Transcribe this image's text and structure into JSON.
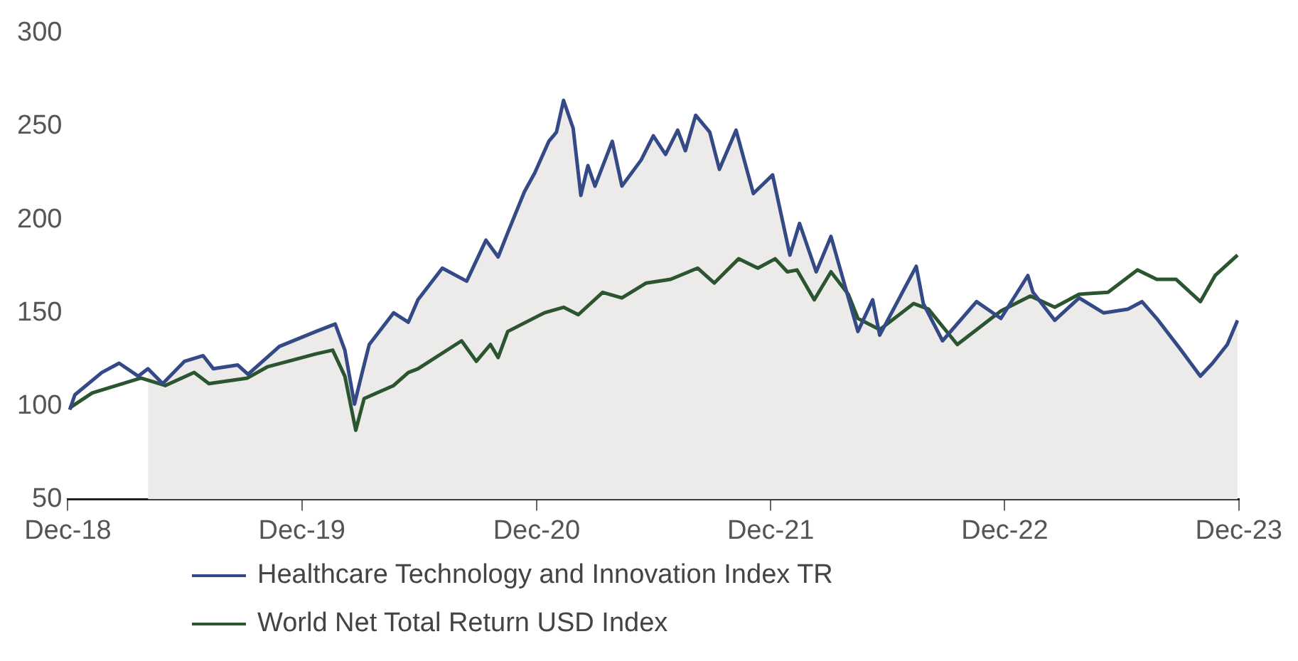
{
  "chart_data": {
    "type": "line",
    "xlim": [
      "2018-12-31",
      "2023-12-31"
    ],
    "xticks": [
      {
        "value": "2018-12-31",
        "label": "Dec-18"
      },
      {
        "value": "2019-12-31",
        "label": "Dec-19"
      },
      {
        "value": "2020-12-31",
        "label": "Dec-20"
      },
      {
        "value": "2021-12-31",
        "label": "Dec-21"
      },
      {
        "value": "2022-12-31",
        "label": "Dec-22"
      },
      {
        "value": "2023-12-31",
        "label": "Dec-23"
      }
    ],
    "ylim": [
      50,
      300
    ],
    "yticks": [
      50,
      100,
      150,
      200,
      250,
      300
    ],
    "grid": false,
    "legend": "bottom",
    "marker": "none",
    "line_style": "solid",
    "series": [
      {
        "type": "area",
        "color": "#edebea",
        "x": [
          "2019-05-05",
          "2019-05-28",
          "2019-07-01",
          "2019-07-30",
          "2019-08-15",
          "2019-09-22",
          "2019-10-08",
          "2019-11-26",
          "2020-01-22",
          "2020-02-21",
          "2020-03-07",
          "2020-03-22",
          "2020-04-03",
          "2020-04-14",
          "2020-05-22",
          "2020-06-14",
          "2020-06-29",
          "2020-08-06",
          "2020-09-13",
          "2020-10-13",
          "2020-11-01",
          "2020-11-16",
          "2020-12-12",
          "2020-12-28",
          "2021-01-19",
          "2021-01-31",
          "2021-02-11",
          "2021-02-26",
          "2021-03-10",
          "2021-03-21",
          "2021-04-01",
          "2021-04-28",
          "2021-05-13",
          "2021-06-12",
          "2021-07-01",
          "2021-07-20",
          "2021-08-08",
          "2021-08-20",
          "2021-09-05",
          "2021-09-27",
          "2021-10-12",
          "2021-11-07",
          "2021-12-04",
          "2022-01-03",
          "2022-01-30",
          "2022-02-14",
          "2022-03-12",
          "2022-04-04",
          "2022-05-16",
          "2022-06-08",
          "2022-06-19",
          "2022-08-15",
          "2022-08-26",
          "2022-09-25",
          "2022-11-17",
          "2022-12-25",
          "2023-02-05",
          "2023-02-13",
          "2023-03-19",
          "2023-04-26",
          "2023-06-03",
          "2023-07-11",
          "2023-08-02",
          "2023-08-25",
          "2023-10-02",
          "2023-11-01",
          "2023-11-20",
          "2023-12-13",
          "2023-12-29"
        ],
        "values": [
          120,
          112,
          124,
          127,
          120,
          122,
          117,
          132,
          140,
          144,
          130,
          101,
          118,
          133,
          150,
          145,
          157,
          174,
          167,
          189,
          180,
          193,
          215,
          225,
          242,
          247,
          264,
          249,
          213,
          229,
          218,
          242,
          218,
          232,
          245,
          235,
          248,
          237,
          256,
          247,
          227,
          248,
          214,
          224,
          181,
          198,
          172,
          191,
          140,
          157,
          138,
          175,
          155,
          135,
          156,
          147,
          170,
          161,
          146,
          158,
          150,
          152,
          156,
          147,
          130,
          116,
          123,
          133,
          146
        ]
      },
      {
        "type": "line",
        "name": "Healthcare Technology and Innovation Index TR",
        "color": "#344a86",
        "x": [
          "2019-01-03",
          "2019-01-11",
          "2019-02-22",
          "2019-03-21",
          "2019-04-20",
          "2019-05-05",
          "2019-05-28",
          "2019-07-01",
          "2019-07-30",
          "2019-08-15",
          "2019-09-22",
          "2019-10-08",
          "2019-11-26",
          "2020-01-22",
          "2020-02-21",
          "2020-03-07",
          "2020-03-22",
          "2020-04-03",
          "2020-04-14",
          "2020-05-22",
          "2020-06-14",
          "2020-06-29",
          "2020-08-06",
          "2020-09-13",
          "2020-10-13",
          "2020-11-01",
          "2020-11-16",
          "2020-12-12",
          "2020-12-28",
          "2021-01-19",
          "2021-01-31",
          "2021-02-11",
          "2021-02-26",
          "2021-03-10",
          "2021-03-21",
          "2021-04-01",
          "2021-04-28",
          "2021-05-13",
          "2021-06-12",
          "2021-07-01",
          "2021-07-20",
          "2021-08-08",
          "2021-08-20",
          "2021-09-05",
          "2021-09-27",
          "2021-10-12",
          "2021-11-07",
          "2021-12-04",
          "2022-01-03",
          "2022-01-30",
          "2022-02-14",
          "2022-03-12",
          "2022-04-04",
          "2022-05-16",
          "2022-06-08",
          "2022-06-19",
          "2022-08-15",
          "2022-08-26",
          "2022-09-25",
          "2022-11-17",
          "2022-12-25",
          "2023-02-05",
          "2023-02-13",
          "2023-03-19",
          "2023-04-26",
          "2023-06-03",
          "2023-07-11",
          "2023-08-02",
          "2023-08-25",
          "2023-10-02",
          "2023-11-01",
          "2023-11-20",
          "2023-12-13",
          "2023-12-29"
        ],
        "values": [
          98,
          106,
          118,
          123,
          116,
          120,
          112,
          124,
          127,
          120,
          122,
          117,
          132,
          140,
          144,
          130,
          101,
          118,
          133,
          150,
          145,
          157,
          174,
          167,
          189,
          180,
          193,
          215,
          225,
          242,
          247,
          264,
          249,
          213,
          229,
          218,
          242,
          218,
          232,
          245,
          235,
          248,
          237,
          256,
          247,
          227,
          248,
          214,
          224,
          181,
          198,
          172,
          191,
          140,
          157,
          138,
          175,
          155,
          135,
          156,
          147,
          170,
          161,
          146,
          158,
          150,
          152,
          156,
          147,
          130,
          116,
          123,
          133,
          146
        ]
      },
      {
        "type": "line",
        "name": "World Net Total Return USD Index",
        "color": "#2a5530",
        "x": [
          "2019-01-03",
          "2019-02-07",
          "2019-04-24",
          "2019-06-01",
          "2019-07-16",
          "2019-08-08",
          "2019-10-07",
          "2019-11-07",
          "2020-01-22",
          "2020-02-17",
          "2020-03-07",
          "2020-03-24",
          "2020-04-06",
          "2020-05-22",
          "2020-06-14",
          "2020-06-29",
          "2020-09-05",
          "2020-09-28",
          "2020-10-20",
          "2020-11-01",
          "2020-11-16",
          "2021-01-12",
          "2021-02-11",
          "2021-03-06",
          "2021-04-13",
          "2021-05-13",
          "2021-06-20",
          "2021-07-28",
          "2021-09-08",
          "2021-10-04",
          "2021-11-11",
          "2021-12-11",
          "2022-01-07",
          "2022-01-26",
          "2022-02-10",
          "2022-03-09",
          "2022-04-04",
          "2022-05-01",
          "2022-05-16",
          "2022-06-19",
          "2022-08-11",
          "2022-09-03",
          "2022-10-18",
          "2022-12-25",
          "2023-02-09",
          "2023-03-19",
          "2023-04-26",
          "2023-06-10",
          "2023-07-26",
          "2023-08-25",
          "2023-09-24",
          "2023-11-01",
          "2023-11-24",
          "2023-12-29"
        ],
        "values": [
          99,
          107,
          115,
          111,
          118,
          112,
          115,
          121,
          128,
          130,
          116,
          87,
          104,
          111,
          118,
          120,
          135,
          124,
          133,
          126,
          140,
          150,
          153,
          149,
          161,
          158,
          166,
          168,
          174,
          166,
          179,
          174,
          179,
          172,
          173,
          157,
          172,
          160,
          147,
          141,
          155,
          152,
          133,
          151,
          159,
          153,
          160,
          161,
          173,
          168,
          168,
          156,
          170,
          181
        ]
      }
    ]
  }
}
